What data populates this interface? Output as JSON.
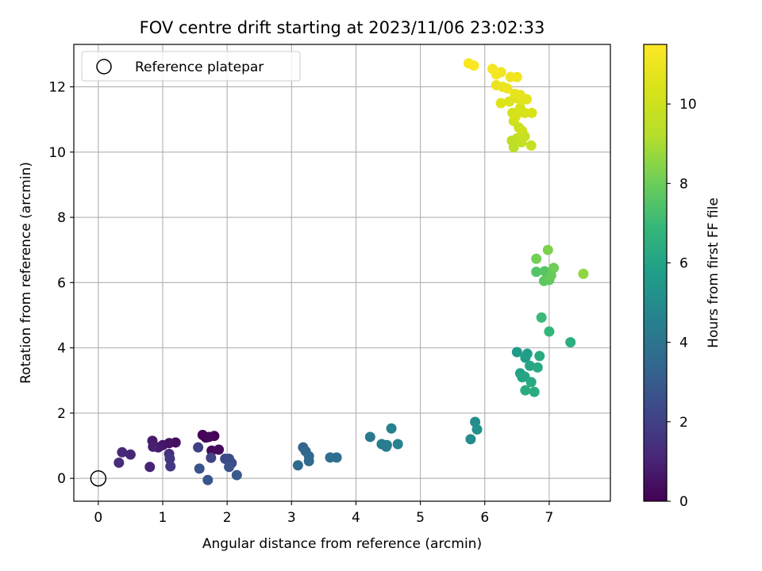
{
  "chart_data": {
    "type": "scatter",
    "title": "FOV centre drift starting at 2023/11/06 23:02:33",
    "xlabel": "Angular distance from reference (arcmin)",
    "ylabel": "Rotation from reference (arcmin)",
    "xlim": [
      -0.38,
      7.95
    ],
    "ylim": [
      -0.7,
      13.3
    ],
    "xticks": [
      0,
      1,
      2,
      3,
      4,
      5,
      6,
      7
    ],
    "yticks": [
      0,
      2,
      4,
      6,
      8,
      10,
      12
    ],
    "grid": true,
    "legend": {
      "placement": "top-left",
      "label": "Reference platepar"
    },
    "reference_point": {
      "x": 0,
      "y": 0
    },
    "colormap": "viridis",
    "colors": [
      "#440154",
      "#3b528b",
      "#21918c",
      "#5ec962",
      "#fde725"
    ],
    "colorbar": {
      "label": "Hours from first FF file",
      "ticks": [
        0,
        2,
        4,
        6,
        8,
        10
      ],
      "range": [
        0,
        11.5
      ]
    },
    "points": [
      {
        "x": 1.62,
        "y": 1.33,
        "c": 0.05
      },
      {
        "x": 1.8,
        "y": 1.3,
        "c": 0.1
      },
      {
        "x": 1.67,
        "y": 1.25,
        "c": 0.15
      },
      {
        "x": 1.72,
        "y": 1.27,
        "c": 0.2
      },
      {
        "x": 1.76,
        "y": 0.85,
        "c": 0.25
      },
      {
        "x": 1.87,
        "y": 0.88,
        "c": 0.3
      },
      {
        "x": 1.2,
        "y": 1.1,
        "c": 0.4
      },
      {
        "x": 1.1,
        "y": 1.08,
        "c": 0.5
      },
      {
        "x": 1.0,
        "y": 1.02,
        "c": 0.6
      },
      {
        "x": 0.93,
        "y": 0.95,
        "c": 0.7
      },
      {
        "x": 0.84,
        "y": 1.15,
        "c": 0.8
      },
      {
        "x": 0.85,
        "y": 0.97,
        "c": 0.9
      },
      {
        "x": 0.8,
        "y": 0.35,
        "c": 1.0
      },
      {
        "x": 0.5,
        "y": 0.73,
        "c": 1.1
      },
      {
        "x": 0.37,
        "y": 0.8,
        "c": 1.2
      },
      {
        "x": 0.32,
        "y": 0.48,
        "c": 1.3
      },
      {
        "x": 1.1,
        "y": 0.75,
        "c": 1.4
      },
      {
        "x": 1.11,
        "y": 0.6,
        "c": 1.6
      },
      {
        "x": 1.12,
        "y": 0.37,
        "c": 1.7
      },
      {
        "x": 1.55,
        "y": 0.95,
        "c": 2.0
      },
      {
        "x": 1.75,
        "y": 0.63,
        "c": 2.1
      },
      {
        "x": 1.97,
        "y": 0.6,
        "c": 2.3
      },
      {
        "x": 2.03,
        "y": 0.6,
        "c": 2.4
      },
      {
        "x": 2.07,
        "y": 0.47,
        "c": 2.5
      },
      {
        "x": 2.03,
        "y": 0.35,
        "c": 2.6
      },
      {
        "x": 1.57,
        "y": 0.3,
        "c": 2.7
      },
      {
        "x": 1.7,
        "y": -0.05,
        "c": 2.8
      },
      {
        "x": 2.15,
        "y": 0.1,
        "c": 2.9
      },
      {
        "x": 3.18,
        "y": 0.95,
        "c": 3.3
      },
      {
        "x": 3.22,
        "y": 0.83,
        "c": 3.4
      },
      {
        "x": 3.27,
        "y": 0.68,
        "c": 3.5
      },
      {
        "x": 3.27,
        "y": 0.53,
        "c": 3.55
      },
      {
        "x": 3.1,
        "y": 0.4,
        "c": 3.6
      },
      {
        "x": 3.6,
        "y": 0.64,
        "c": 3.7
      },
      {
        "x": 3.7,
        "y": 0.64,
        "c": 3.8
      },
      {
        "x": 4.22,
        "y": 1.27,
        "c": 4.2
      },
      {
        "x": 4.4,
        "y": 1.05,
        "c": 4.3
      },
      {
        "x": 4.48,
        "y": 1.02,
        "c": 4.35
      },
      {
        "x": 4.47,
        "y": 0.97,
        "c": 4.4
      },
      {
        "x": 4.55,
        "y": 1.53,
        "c": 4.5
      },
      {
        "x": 4.65,
        "y": 1.05,
        "c": 4.6
      },
      {
        "x": 5.78,
        "y": 1.2,
        "c": 5.0
      },
      {
        "x": 5.85,
        "y": 1.73,
        "c": 5.1
      },
      {
        "x": 5.88,
        "y": 1.5,
        "c": 5.2
      },
      {
        "x": 6.5,
        "y": 3.87,
        "c": 5.6
      },
      {
        "x": 6.63,
        "y": 3.7,
        "c": 5.7
      },
      {
        "x": 6.66,
        "y": 3.82,
        "c": 5.8
      },
      {
        "x": 6.55,
        "y": 3.22,
        "c": 5.9
      },
      {
        "x": 6.58,
        "y": 3.1,
        "c": 6.0
      },
      {
        "x": 6.62,
        "y": 3.12,
        "c": 6.05
      },
      {
        "x": 6.7,
        "y": 3.45,
        "c": 6.1
      },
      {
        "x": 6.72,
        "y": 2.95,
        "c": 6.2
      },
      {
        "x": 6.82,
        "y": 3.4,
        "c": 6.25
      },
      {
        "x": 6.85,
        "y": 3.75,
        "c": 6.3
      },
      {
        "x": 6.63,
        "y": 2.7,
        "c": 6.35
      },
      {
        "x": 6.77,
        "y": 2.65,
        "c": 6.4
      },
      {
        "x": 7.33,
        "y": 4.17,
        "c": 6.5
      },
      {
        "x": 7.0,
        "y": 4.5,
        "c": 6.8
      },
      {
        "x": 6.88,
        "y": 4.93,
        "c": 7.0
      },
      {
        "x": 6.8,
        "y": 6.33,
        "c": 7.5
      },
      {
        "x": 6.93,
        "y": 6.35,
        "c": 7.6
      },
      {
        "x": 6.92,
        "y": 6.05,
        "c": 7.7
      },
      {
        "x": 7.0,
        "y": 6.08,
        "c": 7.8
      },
      {
        "x": 7.03,
        "y": 6.22,
        "c": 7.9
      },
      {
        "x": 7.07,
        "y": 6.45,
        "c": 8.0
      },
      {
        "x": 6.8,
        "y": 6.73,
        "c": 8.1
      },
      {
        "x": 6.98,
        "y": 7.0,
        "c": 8.3
      },
      {
        "x": 7.53,
        "y": 6.27,
        "c": 8.6
      },
      {
        "x": 6.45,
        "y": 10.15,
        "c": 9.4
      },
      {
        "x": 6.42,
        "y": 10.35,
        "c": 9.5
      },
      {
        "x": 6.5,
        "y": 10.42,
        "c": 9.6
      },
      {
        "x": 6.57,
        "y": 10.3,
        "c": 9.7
      },
      {
        "x": 6.62,
        "y": 10.48,
        "c": 9.75
      },
      {
        "x": 6.72,
        "y": 10.2,
        "c": 9.8
      },
      {
        "x": 6.53,
        "y": 10.75,
        "c": 9.9
      },
      {
        "x": 6.58,
        "y": 10.65,
        "c": 10.0
      },
      {
        "x": 6.45,
        "y": 10.95,
        "c": 10.1
      },
      {
        "x": 6.43,
        "y": 11.2,
        "c": 10.2
      },
      {
        "x": 6.48,
        "y": 11.1,
        "c": 10.25
      },
      {
        "x": 6.55,
        "y": 11.35,
        "c": 10.3
      },
      {
        "x": 6.62,
        "y": 11.2,
        "c": 10.35
      },
      {
        "x": 6.73,
        "y": 11.2,
        "c": 10.4
      },
      {
        "x": 6.25,
        "y": 11.5,
        "c": 10.5
      },
      {
        "x": 6.38,
        "y": 11.55,
        "c": 10.55
      },
      {
        "x": 6.5,
        "y": 11.65,
        "c": 10.6
      },
      {
        "x": 6.58,
        "y": 11.6,
        "c": 10.65
      },
      {
        "x": 6.65,
        "y": 11.62,
        "c": 10.7
      },
      {
        "x": 6.47,
        "y": 11.78,
        "c": 10.75
      },
      {
        "x": 6.55,
        "y": 11.75,
        "c": 10.8
      },
      {
        "x": 6.18,
        "y": 12.05,
        "c": 10.9
      },
      {
        "x": 6.28,
        "y": 12.0,
        "c": 10.95
      },
      {
        "x": 6.35,
        "y": 11.95,
        "c": 11.0
      },
      {
        "x": 6.25,
        "y": 12.45,
        "c": 11.05
      },
      {
        "x": 6.4,
        "y": 12.3,
        "c": 11.1
      },
      {
        "x": 6.5,
        "y": 12.3,
        "c": 11.15
      },
      {
        "x": 6.12,
        "y": 12.55,
        "c": 11.2
      },
      {
        "x": 6.18,
        "y": 12.38,
        "c": 11.25
      },
      {
        "x": 5.75,
        "y": 12.72,
        "c": 11.35
      },
      {
        "x": 5.83,
        "y": 12.65,
        "c": 11.4
      }
    ]
  }
}
